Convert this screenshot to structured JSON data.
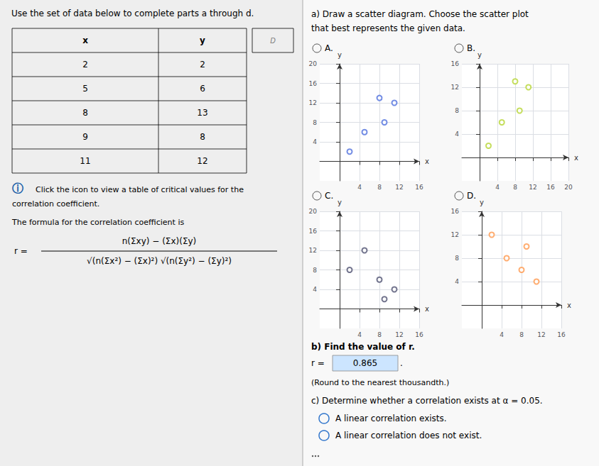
{
  "chart_data": [
    {
      "type": "table",
      "title": "Use the set of data below to complete parts a through d.",
      "columns": [
        "x",
        "y"
      ],
      "x": [
        2,
        5,
        8,
        9,
        11
      ],
      "values": [
        2,
        6,
        13,
        8,
        12
      ],
      "annotations": [
        "D"
      ]
    },
    {
      "type": "scatter",
      "title": "A.",
      "x": [
        2,
        5,
        8,
        9,
        11
      ],
      "values": [
        2,
        6,
        13,
        8,
        12
      ],
      "xlim": [
        -4,
        16
      ],
      "ylim": [
        -4,
        20
      ],
      "xticks": [
        4,
        8,
        12,
        16
      ],
      "yticks": [
        4,
        8,
        12,
        16,
        20
      ],
      "xlabel": "x",
      "ylabel": "y",
      "grid": true
    },
    {
      "type": "scatter",
      "title": "B.",
      "x": [
        2,
        5,
        8,
        9,
        11
      ],
      "values": [
        2,
        6,
        13,
        8,
        12
      ],
      "xlim": [
        -4,
        20
      ],
      "ylim": [
        -4,
        16
      ],
      "xticks": [
        4,
        8,
        12,
        16,
        20
      ],
      "yticks": [
        4,
        8,
        12,
        16
      ],
      "xlabel": "x",
      "ylabel": "y",
      "grid": true
    },
    {
      "type": "scatter",
      "title": "C.",
      "x": [
        2,
        5,
        8,
        9,
        11
      ],
      "values": [
        8,
        12,
        6,
        2,
        4
      ],
      "xlim": [
        -4,
        16
      ],
      "ylim": [
        -4,
        20
      ],
      "xticks": [
        4,
        8,
        12,
        16
      ],
      "yticks": [
        4,
        8,
        12,
        16,
        20
      ],
      "xlabel": "x",
      "ylabel": "y",
      "grid": true
    },
    {
      "type": "scatter",
      "title": "D.",
      "x": [
        2,
        5,
        8,
        9,
        11
      ],
      "values": [
        12,
        8,
        6,
        10,
        4
      ],
      "xlim": [
        -4,
        16
      ],
      "ylim": [
        -4,
        16
      ],
      "xticks": [
        4,
        8,
        12,
        16
      ],
      "yticks": [
        4,
        8,
        12,
        16
      ],
      "xlabel": "x",
      "ylabel": "y",
      "grid": true
    }
  ],
  "annotations": {
    "info_icon": "ⓘ",
    "info": "Click the icon to view a table of critical values for the\ncorrelation coefficient.",
    "formula_intro": "The formula for the correlation coefficient is",
    "formula_lhs": "r =",
    "formula_numerator": "n(Σxy) − (Σx)(Σy)",
    "formula_denominator": "√(n(Σx²) − (Σx)²) √(n(Σy²) − (Σy)²)",
    "section_a": "a) Draw a scatter diagram. Choose the scatter plot\nthat best represents the given data.",
    "section_b": "b) Find the value of r.",
    "r_label": "r =",
    "r_value": "0.865",
    "r_end": ".",
    "r_note": "(Round to the nearest thousandth.)",
    "section_c": "c) Determine whether a correlation exists at α = 0.05.",
    "options": [
      "A linear correlation exists.",
      "A linear correlation does not exist."
    ]
  }
}
